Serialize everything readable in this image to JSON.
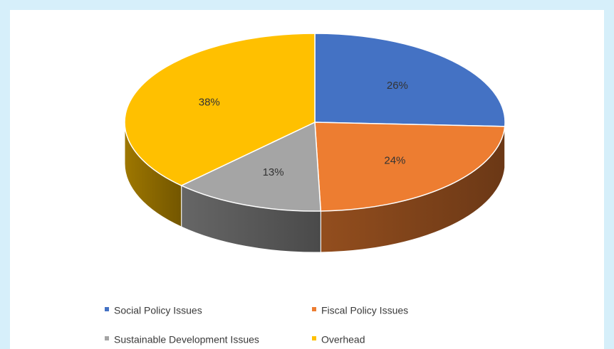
{
  "chart_data": {
    "type": "pie",
    "style": "3d",
    "title": "",
    "legend_position": "bottom",
    "slices": [
      {
        "name": "Social Policy Issues",
        "value": 26,
        "label": "26%",
        "color": "#4472c4"
      },
      {
        "name": "Fiscal Policy Issues",
        "value": 24,
        "label": "24%",
        "color": "#ed7d31"
      },
      {
        "name": "Sustainable Development Issues",
        "value": 13,
        "label": "13%",
        "color": "#a5a5a5"
      },
      {
        "name": "Overhead",
        "value": 38,
        "label": "38%",
        "color": "#ffc000"
      }
    ]
  },
  "colors": {
    "page_background": "#d6effa",
    "panel_background": "#ffffff"
  }
}
